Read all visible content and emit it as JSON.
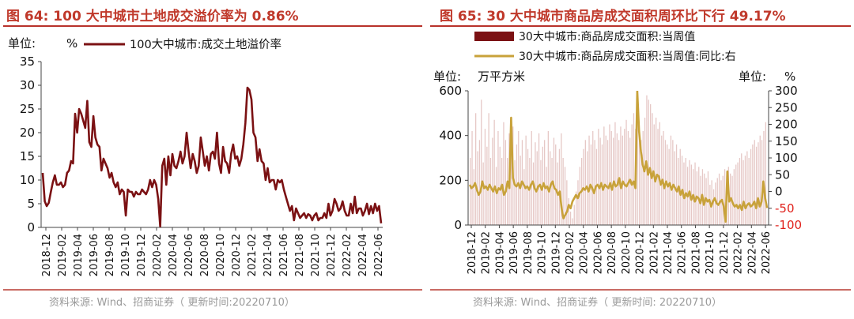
{
  "left": {
    "title": "图 64:  100 大中城市土地成交溢价率为 0.86%",
    "source": "资料来源:  Wind、招商证券（ 更新时间:20220710）",
    "unit_label": "单位:",
    "unit_value": "%",
    "legend": "100大中城市:成交土地溢价率",
    "colors": {
      "line": "#7b1113",
      "title": "#c0392b",
      "axis": "#333333"
    },
    "chart_data": {
      "type": "line",
      "ylabel": "",
      "ylim": [
        0,
        35
      ],
      "yticks": [
        "0",
        "5",
        "10",
        "15",
        "20",
        "25",
        "30",
        "35"
      ],
      "xticks": [
        "2018-12",
        "2019-02",
        "2019-04",
        "2019-06",
        "2019-08",
        "2019-10",
        "2019-12",
        "2020-02",
        "2020-04",
        "2020-06",
        "2020-08",
        "2020-10",
        "2020-12",
        "2021-02",
        "2021-04",
        "2021-06",
        "2021-08",
        "2021-10",
        "2021-12",
        "2022-02",
        "2022-04",
        "2022-06"
      ],
      "series": [
        {
          "name": "100大中城市:成交土地溢价率",
          "values": [
            11.5,
            5.5,
            4.5,
            5.2,
            7.5,
            9.5,
            11,
            9,
            9,
            9.5,
            8.5,
            9,
            11.5,
            12,
            14,
            13.5,
            24,
            20,
            25,
            24,
            22.5,
            21,
            26.7,
            18,
            17,
            23.5,
            19,
            17.5,
            17,
            12,
            14.5,
            13.5,
            12.5,
            10.5,
            11.5,
            9.5,
            8.5,
            9.5,
            7,
            8,
            7.5,
            2.5,
            8,
            7.5,
            7.5,
            6.5,
            7.5,
            7,
            7,
            8,
            7.5,
            7,
            8,
            10,
            8.5,
            10,
            9,
            6,
            0.2,
            13,
            14.5,
            9,
            15,
            11,
            15.5,
            13,
            12.5,
            14,
            16,
            13.5,
            15,
            20,
            16,
            12.5,
            15.5,
            14,
            11.5,
            13,
            19,
            16,
            13,
            15,
            12,
            15.5,
            16,
            14.5,
            20,
            13.5,
            11.5,
            17,
            14,
            13.5,
            11.5,
            15.5,
            17.5,
            14.5,
            15,
            13,
            14.5,
            17.5,
            22,
            29.5,
            29,
            27,
            20,
            19,
            14,
            16.5,
            14,
            13.5,
            10,
            12.5,
            9.5,
            10,
            10,
            8,
            10,
            9.5,
            10,
            8,
            6.5,
            5,
            3.5,
            4.5,
            1.5,
            4,
            3,
            2,
            2.5,
            3,
            2,
            2.8,
            2.5,
            1.5,
            2.5,
            3,
            1.5,
            2,
            2,
            3,
            2,
            5,
            2.5,
            3.5,
            6,
            5,
            3.5,
            4,
            5.5,
            3.5,
            2.5,
            2.5,
            5,
            3,
            6.5,
            3,
            4,
            4,
            2.5,
            3.5,
            5,
            2.8,
            4.5,
            3,
            5,
            3.5,
            4.5,
            0.86
          ]
        }
      ]
    }
  },
  "right": {
    "title": "图 65:  30 大中城市商品房成交面积周环比下行 49.17%",
    "source": "资料来源:  Wind、招商证券（ 更新时间: 20220710）",
    "unit_left_label": "单位:",
    "unit_left_value": "万平方米",
    "unit_right_label": "单位:",
    "unit_right_value": "%",
    "legend_bar": "30大中城市:商品房成交面积:当周值",
    "legend_line": "30大中城市:商品房成交面积:当周值:同比:右",
    "colors": {
      "bar": "#e6c8c6",
      "bar_legend": "#7b1113",
      "line": "#c8a23a",
      "negative_tick": "#e0201a",
      "axis": "#333333"
    },
    "chart_data": {
      "type": "bar",
      "ylim_left": [
        0,
        600
      ],
      "ylim_right": [
        -100,
        300
      ],
      "yticks_left": [
        "0",
        "200",
        "400",
        "600"
      ],
      "yticks_right": [
        "-100",
        "-50",
        "0",
        "50",
        "100",
        "150",
        "200",
        "250",
        "300"
      ],
      "xticks": [
        "2018-12",
        "2019-02",
        "2019-04",
        "2019-06",
        "2019-08",
        "2019-10",
        "2019-12",
        "2020-02",
        "2020-04",
        "2020-06",
        "2020-08",
        "2020-10",
        "2020-12",
        "2021-02",
        "2021-04",
        "2021-06",
        "2021-08",
        "2021-10",
        "2021-12",
        "2022-02",
        "2022-04",
        "2022-06"
      ],
      "series": [
        {
          "name": "30大中城市:商品房成交面积:当周值",
          "axis": "left",
          "values": [
            300,
            420,
            250,
            500,
            330,
            380,
            560,
            280,
            430,
            350,
            500,
            300,
            390,
            470,
            260,
            420,
            350,
            300,
            460,
            380,
            300,
            410,
            330,
            440,
            290,
            360,
            420,
            310,
            380,
            250,
            400,
            340,
            300,
            420,
            280,
            370,
            330,
            410,
            290,
            350,
            380,
            260,
            420,
            330,
            300,
            390,
            360,
            280,
            340,
            410,
            300,
            260,
            200,
            120,
            60,
            30,
            90,
            150,
            200,
            260,
            300,
            340,
            380,
            330,
            400,
            360,
            420,
            380,
            340,
            430,
            390,
            360,
            440,
            400,
            380,
            450,
            420,
            390,
            460,
            410,
            380,
            440,
            400,
            430,
            470,
            420,
            390,
            450,
            500,
            430,
            460,
            410,
            380,
            420,
            480,
            580,
            560,
            540,
            500,
            450,
            480,
            430,
            460,
            400,
            420,
            380,
            360,
            340,
            400,
            380,
            330,
            360,
            300,
            340,
            310,
            280,
            300,
            260,
            290,
            270,
            250,
            280,
            240,
            260,
            220,
            250,
            230,
            210,
            240,
            180,
            200,
            160,
            190,
            210,
            230,
            200,
            220,
            250,
            240,
            260,
            230,
            220,
            250,
            270,
            280,
            300,
            320,
            290,
            310,
            330,
            300,
            340,
            360,
            380,
            350,
            370,
            400,
            380,
            420,
            460
          ]
        },
        {
          "name": "30大中城市:商品房成交面积:当周值:同比:右",
          "axis": "right",
          "values": [
            20,
            10,
            15,
            25,
            5,
            -10,
            0,
            30,
            10,
            15,
            5,
            20,
            10,
            0,
            15,
            -5,
            10,
            5,
            20,
            -10,
            0,
            30,
            10,
            220,
            40,
            20,
            15,
            25,
            10,
            30,
            20,
            10,
            15,
            5,
            20,
            30,
            10,
            0,
            15,
            20,
            5,
            25,
            10,
            15,
            0,
            20,
            30,
            10,
            5,
            -10,
            0,
            -50,
            -80,
            -70,
            -60,
            -40,
            -50,
            -30,
            -20,
            -10,
            -20,
            -5,
            0,
            10,
            5,
            15,
            0,
            20,
            10,
            -5,
            15,
            20,
            10,
            25,
            5,
            20,
            15,
            10,
            25,
            5,
            30,
            15,
            20,
            40,
            10,
            30,
            20,
            15,
            25,
            35,
            20,
            30,
            10,
            300,
            180,
            120,
            80,
            60,
            90,
            50,
            70,
            40,
            60,
            30,
            50,
            45,
            20,
            35,
            10,
            30,
            15,
            25,
            5,
            20,
            10,
            0,
            15,
            -10,
            5,
            -20,
            -5,
            -15,
            0,
            -25,
            -10,
            -30,
            -15,
            -20,
            -35,
            -10,
            -40,
            -20,
            -30,
            -25,
            -45,
            -30,
            -20,
            -35,
            -40,
            -30,
            -25,
            -45,
            -90,
            60,
            -30,
            -20,
            -35,
            -45,
            -40,
            -50,
            -40,
            -55,
            -30,
            -50,
            -40,
            -35,
            -45,
            -40,
            -30,
            -50,
            -20,
            -45,
            -30,
            30,
            -20,
            -49.17
          ]
        }
      ]
    }
  }
}
